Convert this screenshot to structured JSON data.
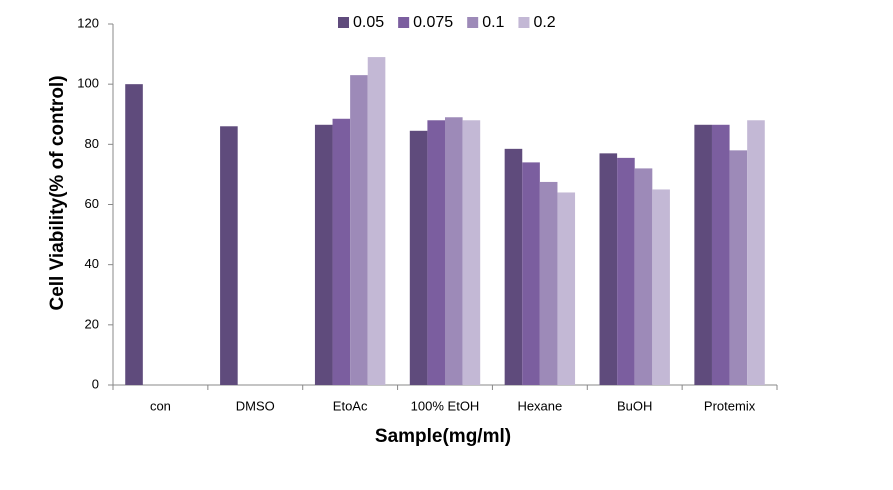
{
  "chart_data": {
    "type": "bar",
    "x_label": "Sample(mg/ml)",
    "y_label": "Cell Viability(% of control)",
    "categories": [
      "con",
      "DMSO",
      "EtoAc",
      "100% EtOH",
      "Hexane",
      "BuOH",
      "Protemix"
    ],
    "series": [
      {
        "name": "0.05",
        "color": "#5f4b7c",
        "values": [
          100,
          86,
          86.5,
          84.5,
          78.5,
          77,
          86.5
        ]
      },
      {
        "name": "0.075",
        "color": "#7b5e9f",
        "values": [
          null,
          null,
          88.5,
          88,
          74,
          75.5,
          86.5
        ]
      },
      {
        "name": "0.1",
        "color": "#9d8ab8",
        "values": [
          null,
          null,
          103,
          89,
          67.5,
          72,
          78
        ]
      },
      {
        "name": "0.2",
        "color": "#c3b8d5",
        "values": [
          null,
          null,
          109,
          88,
          64,
          65,
          88
        ]
      }
    ],
    "ylim": [
      0,
      120
    ],
    "yticks": [
      0,
      20,
      40,
      60,
      80,
      100,
      120
    ],
    "grid": false,
    "legend": "top"
  }
}
